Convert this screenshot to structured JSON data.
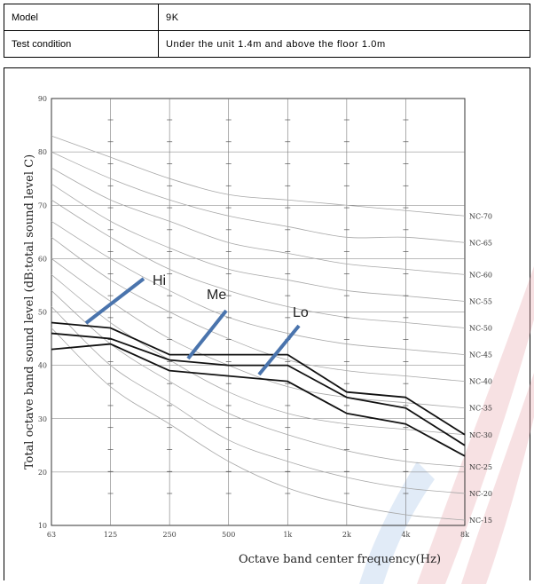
{
  "spec_table": {
    "rows": [
      {
        "label": "Model",
        "value": "9K"
      },
      {
        "label": "Test condition",
        "value": "Under the unit 1.4m and above the floor 1.0m"
      }
    ]
  },
  "chart_data": {
    "type": "line",
    "xlabel": "Octave band center frequency(Hz)",
    "ylabel": "Total octave band sound level (dB:total sound level C)",
    "x_ticks": [
      "63",
      "125",
      "250",
      "500",
      "1k",
      "2k",
      "4k",
      "8k"
    ],
    "y_ticks": [
      10,
      20,
      30,
      40,
      50,
      60,
      70,
      80,
      90
    ],
    "ylim": [
      10,
      90
    ],
    "grid": true,
    "series": [
      {
        "name": "Hi",
        "values": [
          48,
          47,
          42,
          42,
          42,
          35,
          34,
          27
        ]
      },
      {
        "name": "Me",
        "values": [
          46,
          45,
          41,
          40,
          40,
          34,
          32,
          25
        ]
      },
      {
        "name": "Lo",
        "values": [
          43,
          44,
          39,
          38,
          37,
          31,
          29,
          23
        ]
      }
    ],
    "nc_curves": [
      {
        "label": "NC-70",
        "values": [
          83,
          79,
          75,
          72,
          71,
          70,
          69,
          68
        ]
      },
      {
        "label": "NC-65",
        "values": [
          80,
          75,
          71,
          68,
          66,
          64,
          64,
          63
        ]
      },
      {
        "label": "NC-60",
        "values": [
          77,
          71,
          67,
          63,
          61,
          59,
          58,
          57
        ]
      },
      {
        "label": "NC-55",
        "values": [
          74,
          67,
          62,
          58,
          56,
          54,
          53,
          52
        ]
      },
      {
        "label": "NC-50",
        "values": [
          71,
          64,
          58,
          54,
          51,
          49,
          48,
          47
        ]
      },
      {
        "label": "NC-45",
        "values": [
          67,
          60,
          54,
          49,
          46,
          44,
          43,
          42
        ]
      },
      {
        "label": "NC-40",
        "values": [
          64,
          56,
          50,
          45,
          41,
          39,
          38,
          37
        ]
      },
      {
        "label": "NC-35",
        "values": [
          60,
          52,
          45,
          40,
          36,
          34,
          33,
          32
        ]
      },
      {
        "label": "NC-30",
        "values": [
          57,
          48,
          41,
          35,
          31,
          29,
          28,
          27
        ]
      },
      {
        "label": "NC-25",
        "values": [
          54,
          44,
          37,
          31,
          27,
          24,
          22,
          21
        ]
      },
      {
        "label": "NC-20",
        "values": [
          51,
          40,
          33,
          26,
          22,
          19,
          17,
          16
        ]
      },
      {
        "label": "NC-15",
        "values": [
          47,
          36,
          29,
          22,
          17,
          14,
          12,
          11
        ]
      }
    ],
    "callouts": [
      "Hi",
      "Me",
      "Lo"
    ],
    "colors": {
      "data_line": "#111111",
      "nc_line": "#a8a8a8",
      "pointer": "#4a74ad",
      "watermark": "#e9a8b0"
    }
  }
}
